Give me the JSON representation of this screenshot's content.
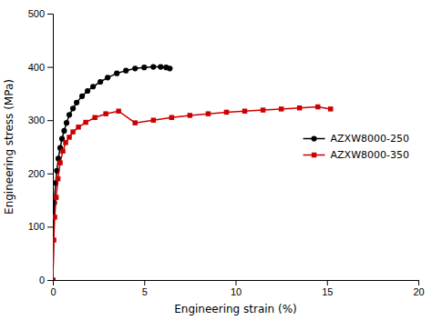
{
  "chart_data": {
    "type": "line",
    "xlabel": "Engineering strain (%)",
    "ylabel": "Engineering stress (MPa)",
    "xlim": [
      0,
      20
    ],
    "ylim": [
      0,
      500
    ],
    "xticks": [
      0,
      5,
      10,
      15,
      20
    ],
    "yticks": [
      0,
      100,
      200,
      300,
      400,
      500
    ],
    "legend": "center right",
    "series": [
      {
        "name": "AZXW8000-250",
        "color": "#000000",
        "marker": "circle",
        "x": [
          0,
          0.08,
          0.15,
          0.22,
          0.3,
          0.4,
          0.5,
          0.62,
          0.75,
          0.9,
          1.1,
          1.3,
          1.6,
          1.9,
          2.2,
          2.6,
          3.0,
          3.5,
          4.0,
          4.5,
          5.0,
          5.5,
          5.9,
          6.2,
          6.4
        ],
        "values": [
          0,
          145,
          182,
          205,
          228,
          248,
          265,
          280,
          295,
          310,
          322,
          333,
          345,
          355,
          363,
          372,
          380,
          388,
          393,
          397,
          399,
          400,
          400,
          399,
          397
        ]
      },
      {
        "name": "AZXW8000-350",
        "color": "#cc0000",
        "marker": "square",
        "x": [
          0,
          0.05,
          0.1,
          0.18,
          0.28,
          0.4,
          0.55,
          0.7,
          0.9,
          1.1,
          1.4,
          1.8,
          2.3,
          2.9,
          3.6,
          4.5,
          5.5,
          6.5,
          7.5,
          8.5,
          9.5,
          10.5,
          11.5,
          12.5,
          13.5,
          14.5,
          15.2
        ],
        "values": [
          0,
          75,
          118,
          155,
          190,
          220,
          242,
          258,
          268,
          278,
          287,
          296,
          305,
          312,
          317,
          295,
          300,
          305,
          309,
          312,
          315,
          317,
          319,
          321,
          323,
          325,
          321
        ]
      }
    ]
  }
}
